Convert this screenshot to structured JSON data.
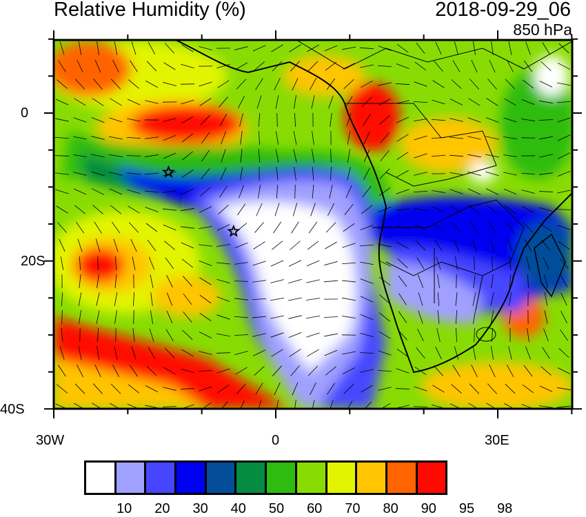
{
  "title": "Relative Humidity (%)",
  "valid_time": "2018-09-29_06",
  "level": "850 hPa",
  "x_axis": {
    "tick_labels": [
      "30W",
      "0",
      "30E"
    ],
    "range": [
      -30,
      40
    ]
  },
  "y_axis": {
    "tick_labels": [
      "0",
      "20S",
      "40S"
    ],
    "range": [
      -40,
      10
    ]
  },
  "markers": [
    {
      "type": "star",
      "lon": -14.5,
      "lat": -8
    },
    {
      "type": "star",
      "lon": -5.7,
      "lat": -16
    }
  ],
  "colorbar": {
    "labels": [
      "10",
      "20",
      "30",
      "40",
      "50",
      "60",
      "70",
      "80",
      "90",
      "95",
      "98"
    ],
    "colors": [
      "#ffffff",
      "#a0a0ff",
      "#4646ff",
      "#0000f0",
      "#034d9a",
      "#058c40",
      "#2fbc10",
      "#88dc03",
      "#e2f400",
      "#ffc500",
      "#ff6400",
      "#ff0a00"
    ]
  }
}
